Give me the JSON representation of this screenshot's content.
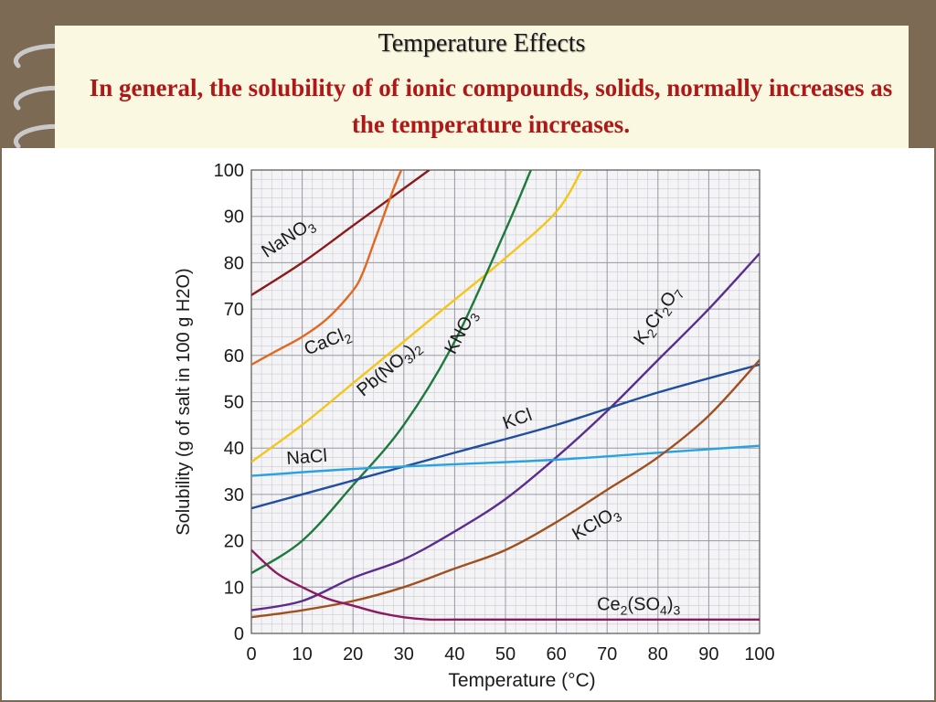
{
  "slide": {
    "title": "Temperature Effects",
    "subtitle": "In general, the solubility of of ionic compounds, solids, normally increases as the temperature increases."
  },
  "chart_data": {
    "type": "line",
    "title": "",
    "xlabel": "Temperature (°C)",
    "ylabel": "Solubility (g of salt in 100 g H2O)",
    "xlim": [
      0,
      100
    ],
    "ylim": [
      0,
      100
    ],
    "x_ticks": [
      0,
      10,
      20,
      30,
      40,
      50,
      60,
      70,
      80,
      90,
      100
    ],
    "y_ticks": [
      0,
      10,
      20,
      30,
      40,
      50,
      60,
      70,
      80,
      90,
      100
    ],
    "grid": true,
    "legend": "none",
    "series": [
      {
        "name": "NaNO3",
        "label_sub": [
          "NaNO",
          "3",
          ""
        ],
        "color": "#8b1a1a",
        "x": [
          0,
          10,
          20,
          30,
          35
        ],
        "y": [
          73,
          80,
          88,
          96,
          100
        ]
      },
      {
        "name": "CaCl2",
        "label_sub": [
          "CaCl",
          "2",
          ""
        ],
        "color": "#e06820",
        "x": [
          0,
          5,
          10,
          15,
          20,
          22,
          24,
          26,
          28,
          29.5
        ],
        "y": [
          58,
          61,
          64,
          68,
          74,
          78,
          84,
          90,
          96,
          100
        ]
      },
      {
        "name": "Pb(NO3)2",
        "label_sub": [
          "Pb(NO",
          "3",
          ")",
          "2",
          ""
        ],
        "color": "#f5c518",
        "x": [
          0,
          10,
          20,
          30,
          40,
          50,
          60,
          65
        ],
        "y": [
          37,
          45,
          54,
          63,
          72,
          81,
          91,
          100
        ]
      },
      {
        "name": "KNO3",
        "label_sub": [
          "KNO",
          "3",
          ""
        ],
        "color": "#1e7a3c",
        "x": [
          0,
          10,
          20,
          30,
          40,
          50,
          55
        ],
        "y": [
          13,
          20,
          32,
          45,
          63,
          87,
          100
        ]
      },
      {
        "name": "K2Cr2O7",
        "label_sub": [
          "K",
          "2",
          "Cr",
          "2",
          "O",
          "7",
          ""
        ],
        "color": "#5b2d8e",
        "x": [
          0,
          10,
          20,
          30,
          40,
          50,
          60,
          70,
          80,
          90,
          100
        ],
        "y": [
          5,
          7,
          12,
          16,
          22,
          29,
          38,
          48,
          59,
          70,
          82
        ]
      },
      {
        "name": "KCl",
        "label_sub": [
          "KCl"
        ],
        "color": "#1f4f9e",
        "x": [
          0,
          20,
          40,
          60,
          80,
          100
        ],
        "y": [
          27,
          33,
          39,
          45,
          52,
          58
        ]
      },
      {
        "name": "NaCl",
        "label_sub": [
          "NaCl"
        ],
        "color": "#29a3e0",
        "x": [
          0,
          20,
          40,
          60,
          80,
          100
        ],
        "y": [
          34,
          35.5,
          36.5,
          37.5,
          39,
          40.5
        ]
      },
      {
        "name": "KClO3",
        "label_sub": [
          "KClO",
          "3",
          ""
        ],
        "color": "#a0501e",
        "x": [
          0,
          10,
          20,
          30,
          40,
          50,
          60,
          70,
          80,
          90,
          100
        ],
        "y": [
          3.5,
          5,
          7,
          10,
          14,
          18,
          24,
          31,
          38,
          47,
          59
        ]
      },
      {
        "name": "Ce2(SO4)3",
        "label_sub": [
          "Ce",
          "2",
          "(SO",
          "4",
          ")",
          "3",
          ""
        ],
        "color": "#8b1a5e",
        "x": [
          0,
          5,
          10,
          15,
          20,
          25,
          30,
          35,
          40,
          60,
          80,
          100
        ],
        "y": [
          18,
          13,
          10,
          7.5,
          6,
          4.5,
          3.5,
          3,
          3,
          3,
          3,
          3
        ]
      }
    ]
  }
}
